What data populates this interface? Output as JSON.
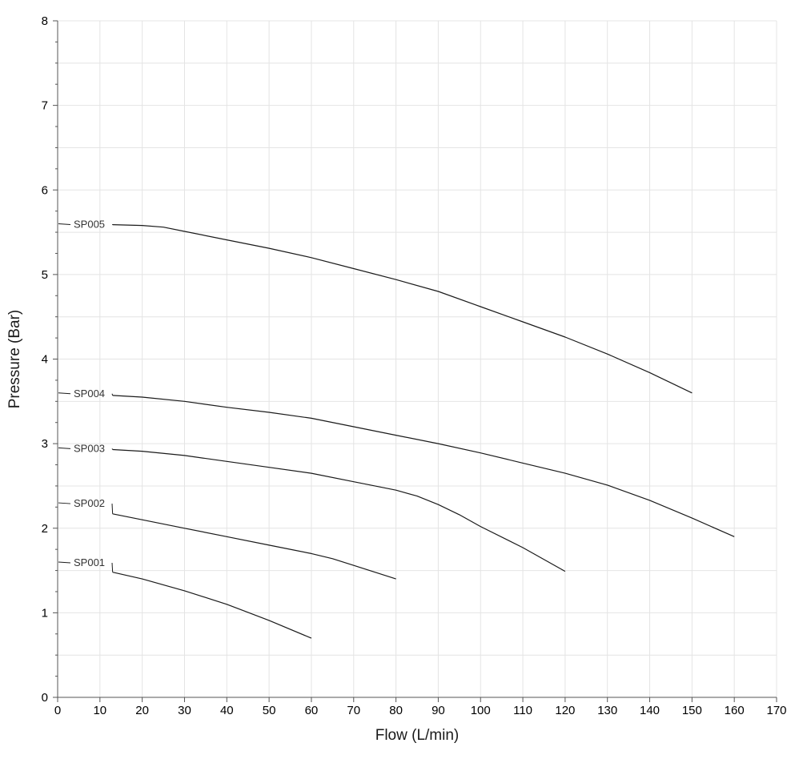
{
  "chart_data": {
    "type": "line",
    "title": "",
    "xlabel": "Flow (L/min)",
    "ylabel": "Pressure (Bar)",
    "xlim": [
      0,
      170
    ],
    "ylim": [
      0,
      8
    ],
    "x_ticks": [
      "0",
      "10",
      "20",
      "30",
      "40",
      "50",
      "60",
      "70",
      "80",
      "90",
      "100",
      "110",
      "120",
      "130",
      "140",
      "150",
      "160",
      "170"
    ],
    "y_ticks": [
      "0",
      "1",
      "2",
      "3",
      "4",
      "5",
      "6",
      "7",
      "8"
    ],
    "grid": true,
    "legend": "none",
    "colors": {
      "series": "#1a1a1a",
      "grid": "#e4e4e4",
      "axis": "#555555"
    },
    "series": [
      {
        "name": "SP001",
        "label_at": 1.6,
        "points": [
          [
            13,
            1.48
          ],
          [
            20,
            1.4
          ],
          [
            30,
            1.26
          ],
          [
            40,
            1.1
          ],
          [
            50,
            0.91
          ],
          [
            60,
            0.7
          ]
        ]
      },
      {
        "name": "SP002",
        "label_at": 2.3,
        "points": [
          [
            13,
            2.17
          ],
          [
            20,
            2.1
          ],
          [
            30,
            2.0
          ],
          [
            40,
            1.9
          ],
          [
            50,
            1.8
          ],
          [
            60,
            1.7
          ],
          [
            65,
            1.64
          ],
          [
            70,
            1.56
          ],
          [
            80,
            1.4
          ]
        ]
      },
      {
        "name": "SP003",
        "label_at": 2.95,
        "points": [
          [
            13,
            2.93
          ],
          [
            20,
            2.91
          ],
          [
            30,
            2.86
          ],
          [
            40,
            2.79
          ],
          [
            50,
            2.72
          ],
          [
            60,
            2.65
          ],
          [
            70,
            2.55
          ],
          [
            80,
            2.45
          ],
          [
            85,
            2.38
          ],
          [
            90,
            2.28
          ],
          [
            95,
            2.16
          ],
          [
            100,
            2.02
          ],
          [
            110,
            1.77
          ],
          [
            120,
            1.49
          ]
        ]
      },
      {
        "name": "SP004",
        "label_at": 3.6,
        "points": [
          [
            13,
            3.57
          ],
          [
            20,
            3.55
          ],
          [
            30,
            3.5
          ],
          [
            40,
            3.43
          ],
          [
            50,
            3.37
          ],
          [
            60,
            3.3
          ],
          [
            70,
            3.2
          ],
          [
            80,
            3.1
          ],
          [
            90,
            3.0
          ],
          [
            100,
            2.89
          ],
          [
            110,
            2.77
          ],
          [
            120,
            2.65
          ],
          [
            130,
            2.51
          ],
          [
            140,
            2.33
          ],
          [
            150,
            2.12
          ],
          [
            160,
            1.9
          ]
        ]
      },
      {
        "name": "SP005",
        "label_at": 5.6,
        "points": [
          [
            13,
            5.59
          ],
          [
            20,
            5.58
          ],
          [
            25,
            5.56
          ],
          [
            30,
            5.51
          ],
          [
            40,
            5.41
          ],
          [
            50,
            5.31
          ],
          [
            60,
            5.2
          ],
          [
            70,
            5.07
          ],
          [
            80,
            4.94
          ],
          [
            90,
            4.8
          ],
          [
            100,
            4.62
          ],
          [
            110,
            4.44
          ],
          [
            120,
            4.26
          ],
          [
            130,
            4.06
          ],
          [
            140,
            3.84
          ],
          [
            150,
            3.6
          ]
        ]
      }
    ]
  }
}
